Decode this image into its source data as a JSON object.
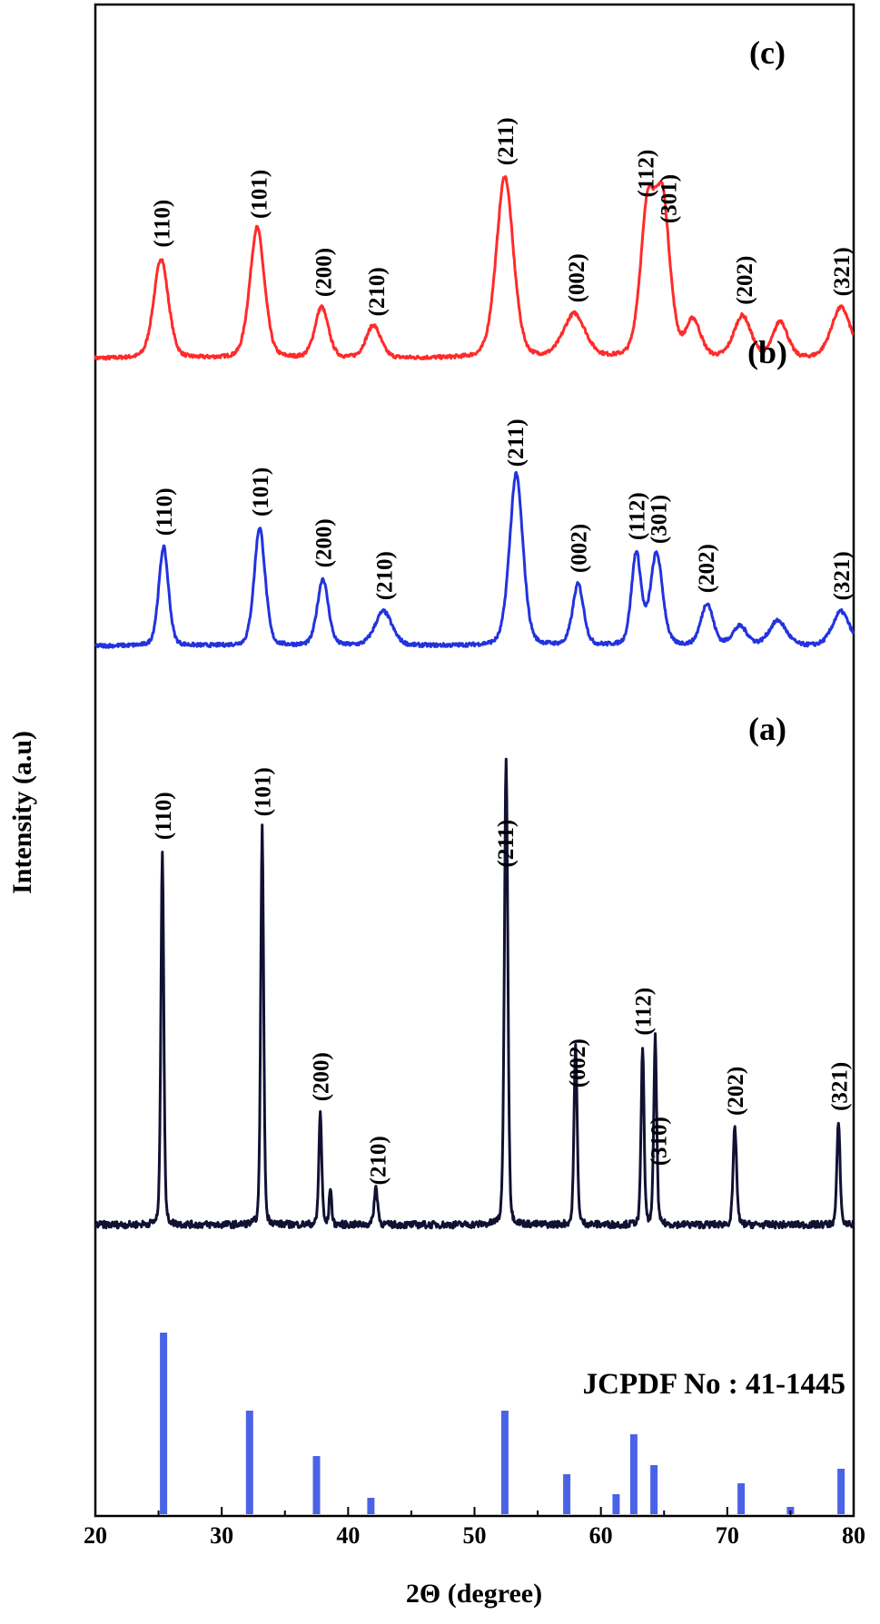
{
  "chart_data": {
    "type": "line",
    "xlabel": "2Θ (degree)",
    "ylabel": "Intensity (a.u)",
    "xlim": [
      20,
      80
    ],
    "xticks": [
      20,
      30,
      40,
      50,
      60,
      70,
      80
    ],
    "reference_label": "JCPDF No : 41-1445",
    "colors": {
      "c": "#ff2a2a",
      "b": "#2233dd",
      "a": "#111133",
      "ref": "#4a63e6"
    },
    "series": [
      {
        "label": "(c)",
        "color_key": "c",
        "baseline": 0.05,
        "noise": 0.02,
        "peaks": [
          [
            25.2,
            0.55,
            0.6
          ],
          [
            32.8,
            0.72,
            0.6
          ],
          [
            37.9,
            0.28,
            0.55
          ],
          [
            42.0,
            0.18,
            0.6
          ],
          [
            52.4,
            1.0,
            0.7
          ],
          [
            57.9,
            0.24,
            0.9
          ],
          [
            63.7,
            0.8,
            0.6
          ],
          [
            64.9,
            0.82,
            0.6
          ],
          [
            67.3,
            0.2,
            0.6
          ],
          [
            71.2,
            0.23,
            0.7
          ],
          [
            74.2,
            0.2,
            0.6
          ],
          [
            79.0,
            0.28,
            0.8
          ]
        ],
        "peak_labels": [
          [
            "(110)",
            25.2
          ],
          [
            "(101)",
            32.9
          ],
          [
            "(200)",
            38.0
          ],
          [
            "(210)",
            42.2
          ],
          [
            "(211)",
            52.4
          ],
          [
            "(002)",
            58.0
          ],
          [
            "(112)",
            63.5
          ],
          [
            "(301)",
            65.3
          ],
          [
            "(202)",
            71.3
          ],
          [
            "(321)",
            79.0
          ]
        ]
      },
      {
        "label": "(b)",
        "color_key": "b",
        "baseline": 0.04,
        "noise": 0.02,
        "peaks": [
          [
            25.4,
            0.52,
            0.4
          ],
          [
            33.0,
            0.62,
            0.45
          ],
          [
            38.0,
            0.35,
            0.45
          ],
          [
            42.8,
            0.18,
            0.7
          ],
          [
            53.3,
            0.9,
            0.55
          ],
          [
            58.2,
            0.32,
            0.45
          ],
          [
            62.8,
            0.48,
            0.4
          ],
          [
            64.4,
            0.48,
            0.5
          ],
          [
            68.4,
            0.22,
            0.5
          ],
          [
            71.0,
            0.1,
            0.6
          ],
          [
            74.0,
            0.13,
            0.7
          ],
          [
            79.0,
            0.18,
            0.7
          ]
        ],
        "peak_labels": [
          [
            "(110)",
            25.4
          ],
          [
            "(101)",
            33.0
          ],
          [
            "(200)",
            38.0
          ],
          [
            "(210)",
            42.8
          ],
          [
            "(211)",
            53.2
          ],
          [
            "(002)",
            58.2
          ],
          [
            "(112)",
            62.8
          ],
          [
            "(301)",
            64.5
          ],
          [
            "(202)",
            68.3
          ],
          [
            "(321)",
            79.0
          ]
        ]
      },
      {
        "label": "(a)",
        "color_key": "a",
        "baseline": 0.05,
        "noise": 0.015,
        "peaks": [
          [
            25.3,
            0.8,
            0.12
          ],
          [
            33.2,
            0.85,
            0.12
          ],
          [
            37.8,
            0.24,
            0.12
          ],
          [
            38.6,
            0.08,
            0.1
          ],
          [
            42.2,
            0.08,
            0.15
          ],
          [
            52.5,
            1.0,
            0.14
          ],
          [
            58.0,
            0.38,
            0.13
          ],
          [
            63.3,
            0.38,
            0.12
          ],
          [
            64.3,
            0.4,
            0.12
          ],
          [
            70.6,
            0.21,
            0.14
          ],
          [
            78.8,
            0.22,
            0.13
          ]
        ],
        "peak_labels": [
          [
            "(110)",
            25.3
          ],
          [
            "(101)",
            33.2
          ],
          [
            "(200)",
            37.8
          ],
          [
            "(210)",
            42.3
          ],
          [
            "(211)",
            52.4
          ],
          [
            "(002)",
            58.1
          ],
          [
            "(112)",
            63.3
          ],
          [
            "(310)",
            64.5
          ],
          [
            "(202)",
            70.6
          ],
          [
            "(321)",
            78.8
          ]
        ]
      }
    ],
    "reference_lines": [
      {
        "x": 25.4,
        "rel": 1.0
      },
      {
        "x": 32.2,
        "rel": 0.57
      },
      {
        "x": 37.5,
        "rel": 0.32
      },
      {
        "x": 41.8,
        "rel": 0.09
      },
      {
        "x": 52.4,
        "rel": 0.57
      },
      {
        "x": 57.3,
        "rel": 0.22
      },
      {
        "x": 61.2,
        "rel": 0.11
      },
      {
        "x": 62.6,
        "rel": 0.44
      },
      {
        "x": 64.2,
        "rel": 0.27
      },
      {
        "x": 71.1,
        "rel": 0.17
      },
      {
        "x": 75.0,
        "rel": 0.04
      },
      {
        "x": 79.0,
        "rel": 0.25
      }
    ]
  }
}
